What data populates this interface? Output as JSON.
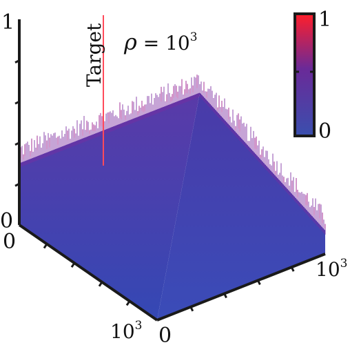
{
  "chart_data": {
    "type": "surface3d",
    "title_symbol": "ρ",
    "title_relation": " = ",
    "title_base": "10",
    "title_exponent": "3",
    "annotation": "Target",
    "grid": false,
    "z_axis": {
      "min_label": "0",
      "max_label": "1",
      "range": [
        0,
        1
      ],
      "ticks": [
        0,
        0.2,
        0.4,
        0.6,
        0.8,
        1
      ]
    },
    "x_axis": {
      "start_label": "0",
      "end_base": "10",
      "end_exponent": "3",
      "range": [
        0,
        1000
      ]
    },
    "y_axis": {
      "start_label": "0",
      "end_base": "10",
      "end_exponent": "3",
      "range": [
        0,
        1000
      ]
    },
    "colorbar": {
      "min_label": "0",
      "max_label": "1",
      "range": [
        0,
        1
      ],
      "colors": [
        "#3a4fae",
        "#6a2a98",
        "#ff1e2a"
      ]
    },
    "surface": {
      "base_level": 0.0,
      "edge_level": 0.3,
      "peak_level": 0.68,
      "target_level": 1.0,
      "colors": {
        "low": "#3a4fae",
        "mid": "#6a2a98",
        "high": "#c0208a"
      }
    }
  }
}
